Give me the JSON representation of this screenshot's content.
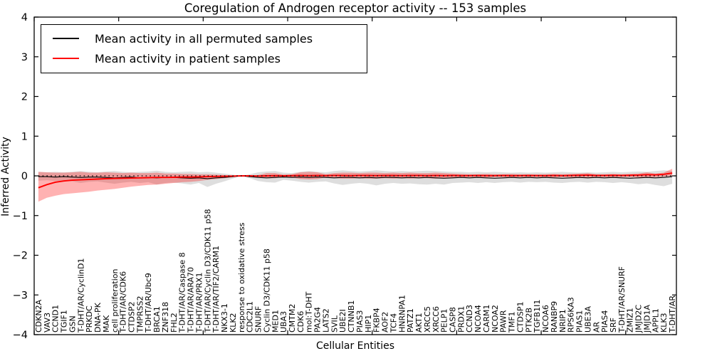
{
  "chart_data": {
    "type": "line",
    "title": "Coregulation of Androgen receptor activity -- 153 samples",
    "xlabel": "Cellular Entities",
    "ylabel": "Inferred Activity",
    "ylim": [
      -4,
      4
    ],
    "yticks": [
      4,
      3,
      2,
      1,
      0,
      -1,
      -2,
      -3,
      -4
    ],
    "ytick_labels": [
      "4",
      "3",
      "2",
      "1",
      "0",
      "−1",
      "−2",
      "−3",
      "−4"
    ],
    "xlim": [
      0,
      76
    ],
    "xticks": [
      0,
      10,
      20,
      30,
      40,
      50,
      60,
      70
    ],
    "grid": false,
    "legend_position": "upper left",
    "zero_line": {
      "style": "dotted",
      "color": "#000000",
      "y": 0
    },
    "categories": [
      "CDKN2A",
      "VAV3",
      "CCND1",
      "TGIF1",
      "GSN",
      "T-DHT/AR/CyclinD1",
      "PRKDC",
      "DNA-PK",
      "MAK",
      "cell proliferation",
      "T-DHT/AR/CDK6",
      "CTDSP2",
      "TMPRSS2",
      "T-DHT/AR/Ubc9",
      "BRCA1",
      "ZNF318",
      "FHL2",
      "T-DHT/AR/Caspase 8",
      "T-DHT/AR/ARA70",
      "T-DHT/AR/PRX1",
      "T-DHT/AR/Cyclin D3/CDK11 p58",
      "T-DHT/AR/TIF2/CARM1",
      "NKX3-1",
      "KLK2",
      "response to oxidative stress",
      "CDC2L1",
      "SNURF",
      "Cyclin D3/CDK11 p58",
      "MED1",
      "UBA3",
      "CMTM2",
      "CDK6",
      "mol:T-DHT",
      "PA2G4",
      "LATS2",
      "SVIL",
      "UBE2I",
      "CTNNB1",
      "PIAS3",
      "HIP1",
      "FKBP4",
      "AOF2",
      "TCF4",
      "HNRNPA1",
      "PATZ1",
      "AKT1",
      "XRCC5",
      "XRCC6",
      "PELP1",
      "CASP8",
      "PRDX1",
      "CCND3",
      "NCOA4",
      "CARM1",
      "NCOA2",
      "PAWR",
      "TMF1",
      "CTDSP1",
      "PTK2B",
      "TGFB1I1",
      "NCOA6",
      "RANBP9",
      "NRIP1",
      "RPS6KA3",
      "PIAS1",
      "UBE3A",
      "AR",
      "PIAS4",
      "SRF",
      "T-DHT/AR/SNURF",
      "ZMIZ1",
      "JMJD2C",
      "JMJD1A",
      "APPL1",
      "KLK3",
      "T-DHT/AR"
    ],
    "series": [
      {
        "name": "Mean activity in all permuted samples",
        "color": "#000000",
        "line_width": 1.1,
        "band_color": "rgba(0,0,0,0.13)",
        "values": [
          -0.02,
          -0.02,
          -0.03,
          -0.02,
          -0.03,
          -0.04,
          -0.03,
          -0.03,
          -0.04,
          -0.05,
          -0.04,
          -0.03,
          -0.05,
          -0.04,
          -0.05,
          -0.04,
          -0.04,
          -0.05,
          -0.06,
          -0.05,
          -0.07,
          -0.05,
          -0.04,
          -0.02,
          0,
          -0.02,
          -0.04,
          -0.05,
          -0.04,
          -0.03,
          -0.04,
          -0.03,
          -0.04,
          -0.03,
          -0.04,
          -0.05,
          -0.04,
          -0.04,
          -0.05,
          -0.04,
          -0.05,
          -0.04,
          -0.04,
          -0.05,
          -0.04,
          -0.05,
          -0.04,
          -0.05,
          -0.06,
          -0.05,
          -0.04,
          -0.05,
          -0.04,
          -0.05,
          -0.06,
          -0.05,
          -0.04,
          -0.05,
          -0.04,
          -0.05,
          -0.04,
          -0.05,
          -0.06,
          -0.05,
          -0.04,
          -0.05,
          -0.04,
          -0.05,
          -0.04,
          -0.05,
          -0.06,
          -0.05,
          -0.04,
          -0.05,
          -0.04,
          -0.02
        ],
        "band_upper": [
          0.1,
          0.09,
          0.1,
          0.09,
          0.1,
          0.12,
          0.1,
          0.09,
          0.11,
          0.12,
          0.1,
          0.09,
          0.1,
          0.11,
          0.13,
          0.1,
          0.09,
          0.1,
          0.11,
          0.09,
          0.1,
          0.08,
          0.06,
          0.03,
          0,
          0.04,
          0.09,
          0.11,
          0.12,
          0.08,
          0.07,
          0.1,
          0.12,
          0.1,
          0.09,
          0.12,
          0.14,
          0.12,
          0.11,
          0.12,
          0.14,
          0.12,
          0.11,
          0.12,
          0.11,
          0.12,
          0.13,
          0.12,
          0.11,
          0.1,
          0.1,
          0.09,
          0.1,
          0.09,
          0.1,
          0.09,
          0.08,
          0.09,
          0.08,
          0.09,
          0.08,
          0.09,
          0.1,
          0.09,
          0.08,
          0.09,
          0.08,
          0.09,
          0.1,
          0.09,
          0.1,
          0.11,
          0.1,
          0.12,
          0.14,
          0.12
        ],
        "band_lower": [
          -0.12,
          -0.11,
          -0.13,
          -0.12,
          -0.14,
          -0.18,
          -0.15,
          -0.14,
          -0.17,
          -0.2,
          -0.17,
          -0.15,
          -0.18,
          -0.16,
          -0.22,
          -0.18,
          -0.17,
          -0.19,
          -0.22,
          -0.18,
          -0.28,
          -0.2,
          -0.14,
          -0.07,
          0,
          -0.06,
          -0.13,
          -0.16,
          -0.17,
          -0.1,
          -0.12,
          -0.15,
          -0.17,
          -0.15,
          -0.14,
          -0.19,
          -0.23,
          -0.2,
          -0.18,
          -0.2,
          -0.24,
          -0.2,
          -0.18,
          -0.2,
          -0.19,
          -0.21,
          -0.22,
          -0.2,
          -0.22,
          -0.18,
          -0.17,
          -0.16,
          -0.18,
          -0.16,
          -0.18,
          -0.16,
          -0.15,
          -0.17,
          -0.15,
          -0.16,
          -0.15,
          -0.17,
          -0.18,
          -0.16,
          -0.15,
          -0.17,
          -0.15,
          -0.16,
          -0.18,
          -0.16,
          -0.18,
          -0.21,
          -0.19,
          -0.23,
          -0.26,
          -0.2
        ]
      },
      {
        "name": "Mean activity in patient samples",
        "color": "#ff0000",
        "line_width": 1.9,
        "band_color": "rgba(255,0,0,0.30)",
        "values": [
          -0.3,
          -0.22,
          -0.16,
          -0.13,
          -0.11,
          -0.1,
          -0.09,
          -0.08,
          -0.07,
          -0.065,
          -0.06,
          -0.055,
          -0.05,
          -0.045,
          -0.04,
          -0.04,
          -0.035,
          -0.03,
          -0.03,
          -0.025,
          -0.02,
          -0.015,
          -0.01,
          -0.005,
          0,
          0,
          -0.005,
          0,
          0.005,
          0,
          0.005,
          0.01,
          0.005,
          0.01,
          0.005,
          0.01,
          0.01,
          0.005,
          0.01,
          0.01,
          0.005,
          0.01,
          0.01,
          0.005,
          0.01,
          0.01,
          0.005,
          0.01,
          0.005,
          0.01,
          0.005,
          0.005,
          0.01,
          0.005,
          0.005,
          0.01,
          0.005,
          0.005,
          0.01,
          0.005,
          0.005,
          0.01,
          0.005,
          0.01,
          0.015,
          0.02,
          0.01,
          0.01,
          0.015,
          0.01,
          0.015,
          0.02,
          0.03,
          0.025,
          0.04,
          0.07
        ],
        "band_upper": [
          0.1,
          0.09,
          0.08,
          0.08,
          0.09,
          0.1,
          0.08,
          0.08,
          0.09,
          0.08,
          0.07,
          0.08,
          0.07,
          0.07,
          0.08,
          0.06,
          0.06,
          0.05,
          0.05,
          0.04,
          0.04,
          0.03,
          0.02,
          0.01,
          0,
          0.01,
          0.02,
          0.07,
          0.07,
          0.03,
          0.04,
          0.09,
          0.1,
          0.09,
          0.04,
          0.07,
          0.08,
          0.08,
          0.07,
          0.08,
          0.08,
          0.07,
          0.08,
          0.07,
          0.08,
          0.07,
          0.07,
          0.08,
          0.07,
          0.06,
          0.05,
          0.04,
          0.04,
          0.05,
          0.04,
          0.04,
          0.05,
          0.04,
          0.04,
          0.04,
          0.04,
          0.05,
          0.04,
          0.05,
          0.06,
          0.07,
          0.04,
          0.04,
          0.05,
          0.04,
          0.05,
          0.06,
          0.09,
          0.06,
          0.08,
          0.18
        ],
        "band_lower": [
          -0.65,
          -0.55,
          -0.5,
          -0.46,
          -0.44,
          -0.42,
          -0.4,
          -0.37,
          -0.35,
          -0.33,
          -0.3,
          -0.27,
          -0.25,
          -0.23,
          -0.22,
          -0.2,
          -0.18,
          -0.16,
          -0.15,
          -0.13,
          -0.1,
          -0.08,
          -0.06,
          -0.03,
          0,
          -0.01,
          -0.02,
          -0.06,
          -0.06,
          -0.03,
          -0.04,
          -0.08,
          -0.09,
          -0.08,
          -0.04,
          -0.06,
          -0.07,
          -0.07,
          -0.06,
          -0.07,
          -0.07,
          -0.06,
          -0.07,
          -0.06,
          -0.07,
          -0.06,
          -0.06,
          -0.07,
          -0.06,
          -0.05,
          -0.04,
          -0.03,
          -0.03,
          -0.04,
          -0.03,
          -0.03,
          -0.04,
          -0.03,
          -0.03,
          -0.03,
          -0.03,
          -0.04,
          -0.03,
          -0.04,
          -0.05,
          -0.05,
          -0.03,
          -0.03,
          -0.04,
          -0.03,
          -0.03,
          -0.04,
          -0.05,
          -0.03,
          -0.02,
          0
        ]
      }
    ]
  }
}
